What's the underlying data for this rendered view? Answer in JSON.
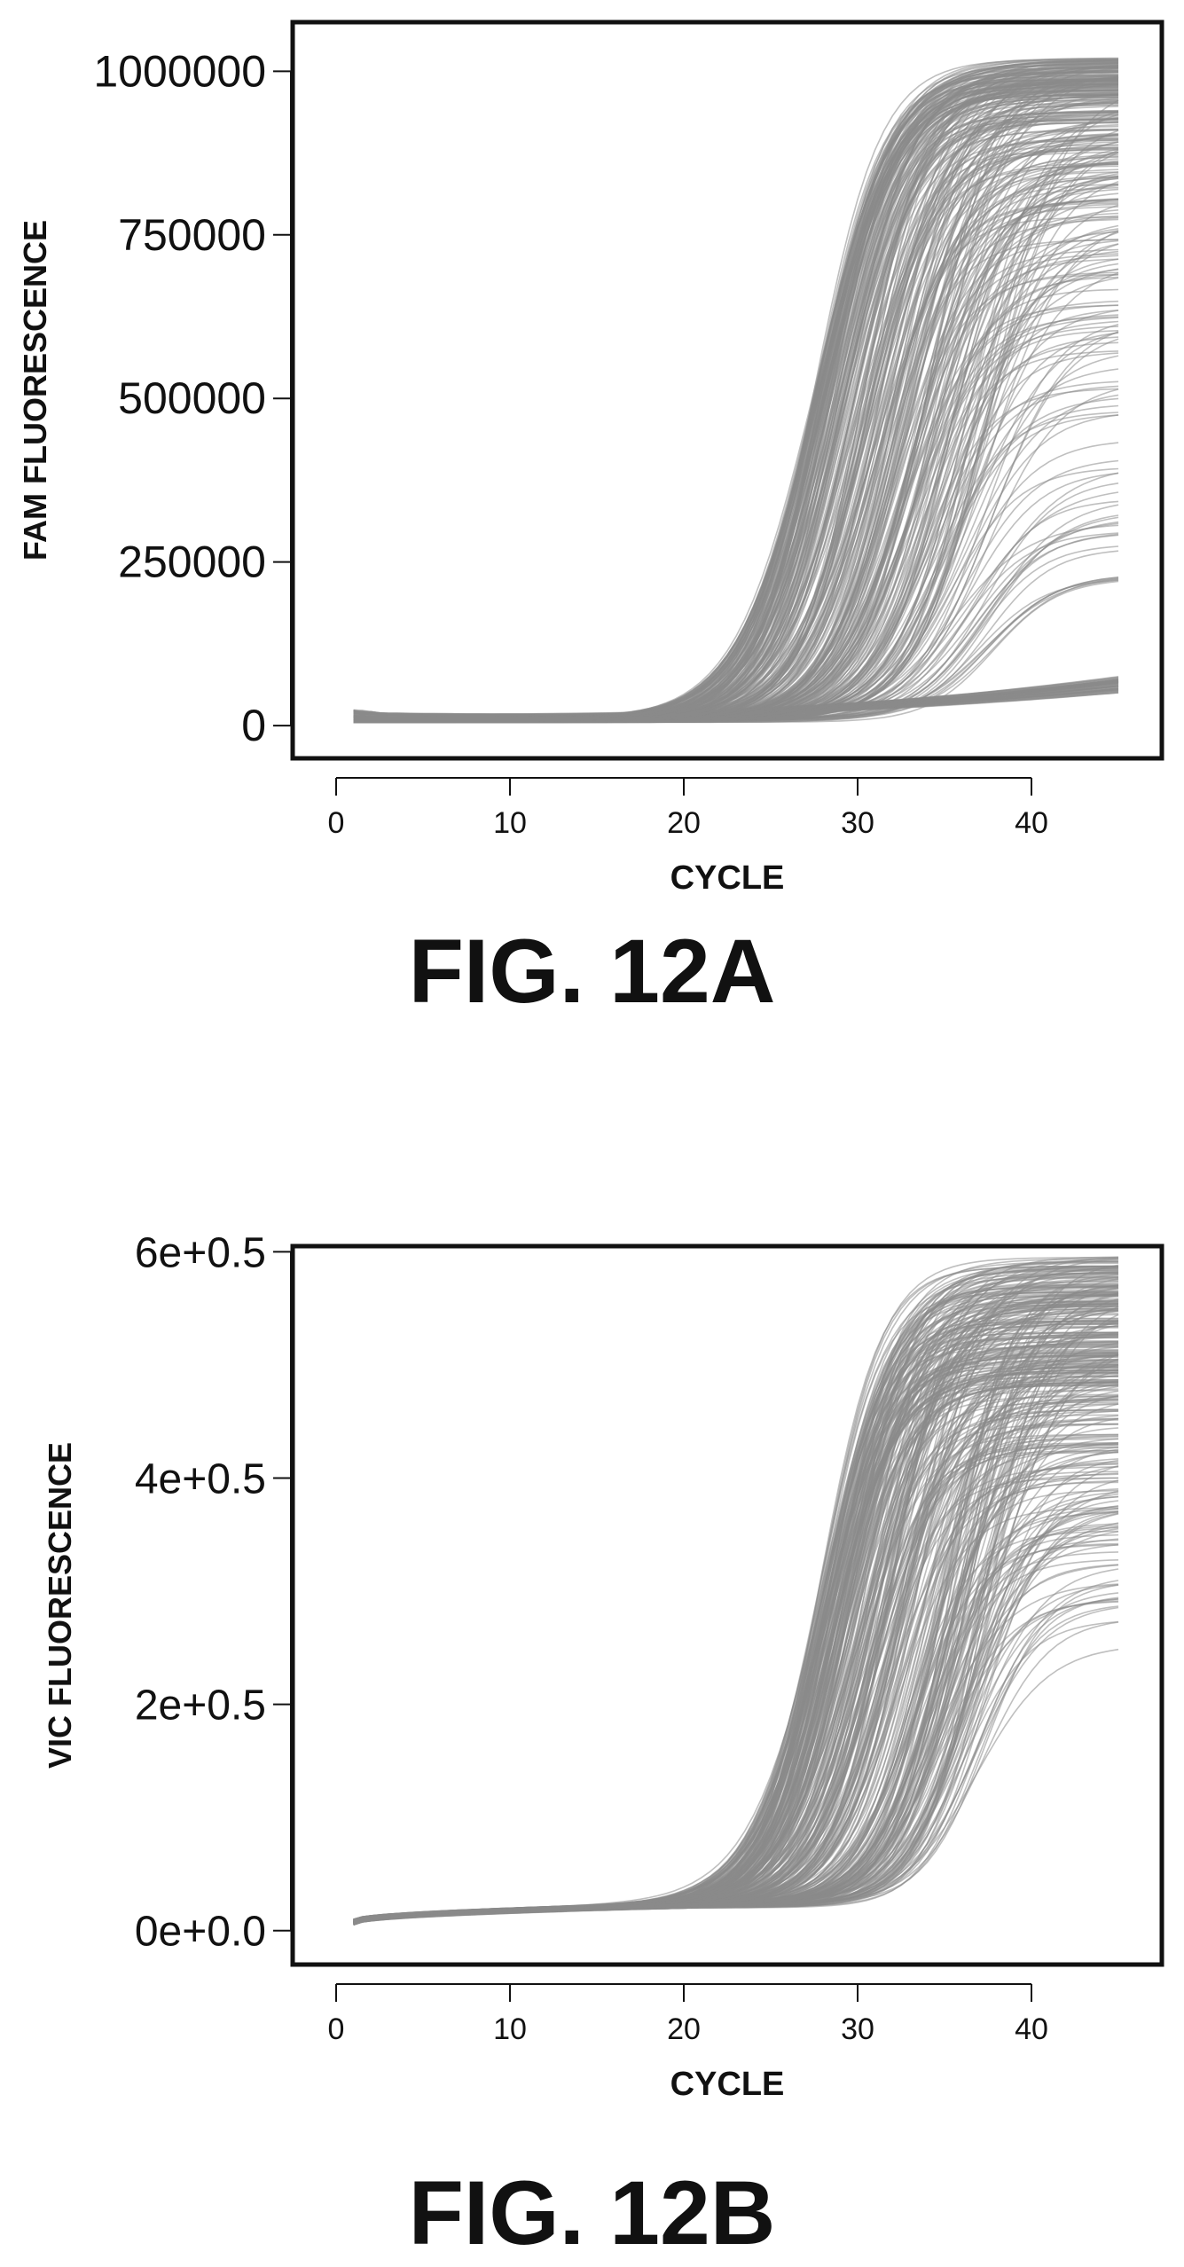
{
  "figures": [
    {
      "caption": "FIG. 12A",
      "chart_data": {
        "type": "line",
        "title": "",
        "xlabel": "CYCLE",
        "ylabel": "FAM FLUORESCENCE",
        "x_ticks": [
          0,
          10,
          20,
          30,
          40
        ],
        "x_tick_labels": [
          "0",
          "10",
          "20",
          "30",
          "40"
        ],
        "y_ticks": [
          0,
          250000,
          500000,
          750000,
          1000000
        ],
        "y_tick_labels": [
          "0",
          "250000",
          "500000",
          "750000",
          "1000000"
        ],
        "xlim": [
          -2.5,
          47.5
        ],
        "ylim": [
          -50000,
          1075000
        ],
        "grid": false,
        "line_color": "#8a8a8a",
        "x_range": [
          1,
          45
        ],
        "description_of_series": "hundreds of overlapping amplification curves",
        "series_envelope": {
          "baseline_low": 5000,
          "baseline_high": 20000,
          "flat_high_group_end": 75000,
          "flat_low_group_end": 50000,
          "rising_midpoint_min_cycle": 27.5,
          "rising_midpoint_max_cycle": 38,
          "rising_plateau_max": 1010000,
          "rising_plateau_min": 220000
        }
      }
    },
    {
      "caption": "FIG. 12B",
      "chart_data": {
        "type": "line",
        "title": "",
        "xlabel": "CYCLE",
        "ylabel": "VIC FLUORESCENCE",
        "x_ticks": [
          0,
          10,
          20,
          30,
          40
        ],
        "x_tick_labels": [
          "0",
          "10",
          "20",
          "30",
          "40"
        ],
        "y_ticks": [
          0,
          2,
          4,
          6
        ],
        "y_tick_labels": [
          "0e+0.0",
          "2e+0.5",
          "4e+0.5",
          "6e+0.5"
        ],
        "xlim": [
          -2.5,
          47.5
        ],
        "ylim": [
          -0.3,
          6.05
        ],
        "grid": false,
        "line_color": "#8a8a8a",
        "x_range": [
          1,
          45
        ],
        "series_envelope": {
          "baseline_start": 0.05,
          "baseline_end": 0.2,
          "rising_midpoint_min_cycle": 27.8,
          "rising_midpoint_max_cycle": 37.5,
          "rising_plateau_max": 5.75,
          "rising_plateau_min": 1.8
        }
      }
    }
  ]
}
